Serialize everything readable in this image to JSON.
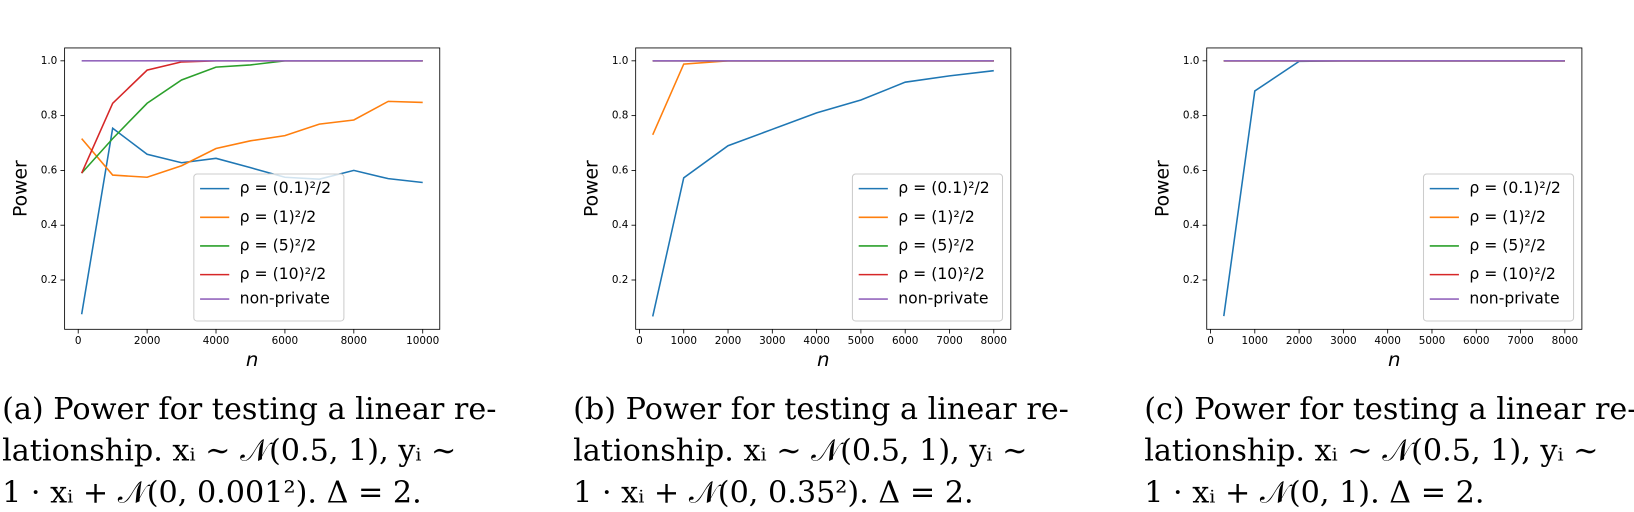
{
  "chart_data": [
    {
      "type": "line",
      "ylabel": "Power",
      "xlabel": "n",
      "x": [
        100,
        1000,
        2000,
        3000,
        4000,
        5000,
        6000,
        7000,
        8000,
        9000,
        10000
      ],
      "xlim": [
        -395,
        10495
      ],
      "xticks": [
        0,
        2000,
        4000,
        6000,
        8000,
        10000
      ],
      "ylim": [
        0.02,
        1.047
      ],
      "yticks": [
        0.2,
        0.4,
        0.6,
        0.8,
        {
          "value": 1,
          "label": "1.0"
        }
      ],
      "legend": "lower center",
      "series": [
        {
          "name": "ρ = (0.1)²/2",
          "color": "#1f77b4",
          "values": [
            0.075,
            0.754,
            0.659,
            0.628,
            0.644,
            0.61,
            0.575,
            0.568,
            0.6,
            0.57,
            0.556
          ]
        },
        {
          "name": "ρ = (1)²/2",
          "color": "#ff7f0e",
          "values": [
            0.716,
            0.583,
            0.575,
            0.617,
            0.68,
            0.708,
            0.727,
            0.769,
            0.784,
            0.852,
            0.848
          ]
        },
        {
          "name": "ρ = (5)²/2",
          "color": "#2ca02c",
          "values": [
            0.59,
            0.716,
            0.845,
            0.93,
            0.977,
            0.985,
            1,
            1,
            1,
            1,
            1
          ]
        },
        {
          "name": "ρ = (10)²/2",
          "color": "#d62728",
          "values": [
            0.59,
            0.845,
            0.966,
            0.996,
            1,
            1,
            1,
            1,
            1,
            1,
            1
          ]
        },
        {
          "name": "non-private",
          "color": "#9467bd",
          "values": [
            1,
            1,
            1,
            1,
            1,
            1,
            1,
            1,
            1,
            1,
            1
          ]
        }
      ],
      "caption": [
        "(a) Power for testing a linear re-",
        "lationship.  xᵢ ∼ 𝒩(0.5, 1),  yᵢ ∼",
        "1 · xᵢ + 𝒩(0, 0.001²).  Δ = 2."
      ]
    },
    {
      "type": "line",
      "ylabel": "Power",
      "xlabel": "n",
      "x": [
        300,
        1000,
        2000,
        3000,
        4000,
        5000,
        6000,
        7000,
        8000
      ],
      "xlim": [
        -85,
        8385
      ],
      "xticks": [
        0,
        1000,
        2000,
        3000,
        4000,
        5000,
        6000,
        7000,
        8000
      ],
      "ylim": [
        0.02,
        1.047
      ],
      "yticks": [
        0.2,
        0.4,
        0.6,
        0.8,
        {
          "value": 1,
          "label": "1.0"
        }
      ],
      "legend": "lower right",
      "series": [
        {
          "name": "ρ = (0.1)²/2",
          "color": "#1f77b4",
          "values": [
            0.067,
            0.573,
            0.69,
            0.75,
            0.81,
            0.857,
            0.922,
            0.945,
            0.964
          ]
        },
        {
          "name": "ρ = (1)²/2",
          "color": "#ff7f0e",
          "values": [
            0.73,
            0.988,
            1,
            1,
            1,
            1,
            1,
            1,
            1
          ]
        },
        {
          "name": "ρ = (5)²/2",
          "color": "#2ca02c",
          "values": [
            1,
            1,
            1,
            1,
            1,
            1,
            1,
            1,
            1
          ]
        },
        {
          "name": "ρ = (10)²/2",
          "color": "#d62728",
          "values": [
            1,
            1,
            1,
            1,
            1,
            1,
            1,
            1,
            1
          ]
        },
        {
          "name": "non-private",
          "color": "#9467bd",
          "values": [
            1,
            1,
            1,
            1,
            1,
            1,
            1,
            1,
            1
          ]
        }
      ],
      "caption": [
        "(b) Power for testing a linear re-",
        "lationship.  xᵢ ∼ 𝒩(0.5, 1),  yᵢ ∼",
        "1 · xᵢ + 𝒩(0, 0.35²).  Δ = 2."
      ]
    },
    {
      "type": "line",
      "ylabel": "Power",
      "xlabel": "n",
      "x": [
        300,
        1000,
        2000,
        3000,
        4000,
        5000,
        6000,
        7000,
        8000
      ],
      "xlim": [
        -85,
        8385
      ],
      "xticks": [
        0,
        1000,
        2000,
        3000,
        4000,
        5000,
        6000,
        7000,
        8000
      ],
      "ylim": [
        0.02,
        1.047
      ],
      "yticks": [
        0.2,
        0.4,
        0.6,
        0.8,
        {
          "value": 1,
          "label": "1.0"
        }
      ],
      "legend": "lower right",
      "series": [
        {
          "name": "ρ = (0.1)²/2",
          "color": "#1f77b4",
          "values": [
            0.068,
            0.89,
            0.998,
            1,
            1,
            1,
            1,
            1,
            1
          ]
        },
        {
          "name": "ρ = (1)²/2",
          "color": "#ff7f0e",
          "values": [
            1,
            1,
            1,
            1,
            1,
            1,
            1,
            1,
            1
          ]
        },
        {
          "name": "ρ = (5)²/2",
          "color": "#2ca02c",
          "values": [
            1,
            1,
            1,
            1,
            1,
            1,
            1,
            1,
            1
          ]
        },
        {
          "name": "ρ = (10)²/2",
          "color": "#d62728",
          "values": [
            1,
            1,
            1,
            1,
            1,
            1,
            1,
            1,
            1
          ]
        },
        {
          "name": "non-private",
          "color": "#9467bd",
          "values": [
            1,
            1,
            1,
            1,
            1,
            1,
            1,
            1,
            1
          ]
        }
      ],
      "caption": [
        "(c) Power for testing a linear re-",
        "lationship.  xᵢ ∼ 𝒩(0.5, 1),  yᵢ ∼",
        "1 · xᵢ + 𝒩(0, 1).  Δ = 2."
      ]
    }
  ]
}
